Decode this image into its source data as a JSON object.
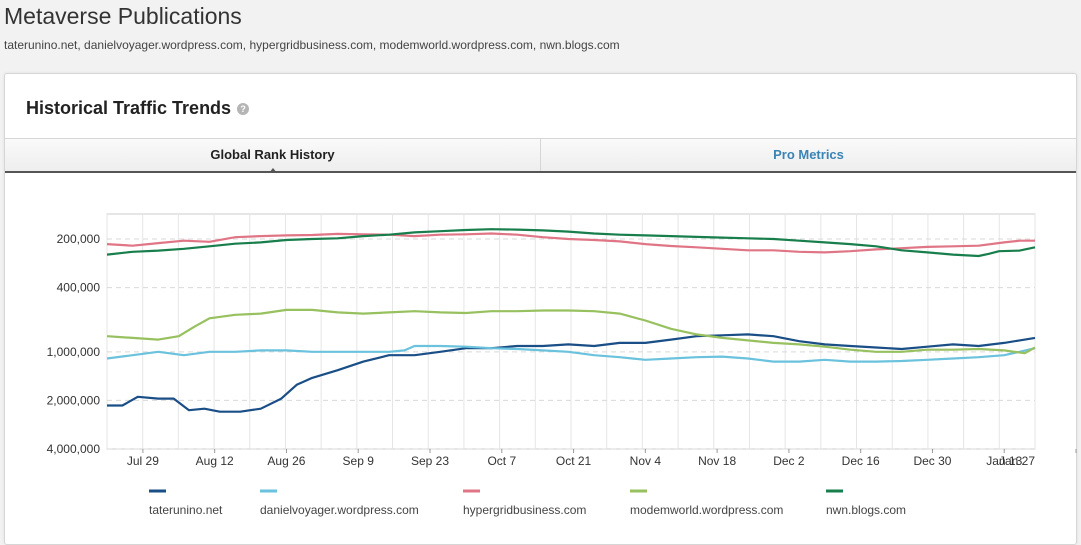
{
  "page": {
    "title": "Metaverse Publications",
    "subtitle": "taterunino.net, danielvoyager.wordpress.com, hypergridbusiness.com, modemworld.wordpress.com, nwn.blogs.com"
  },
  "panel": {
    "title": "Historical Traffic Trends",
    "help_glyph": "?"
  },
  "tabs": [
    {
      "label": "Global Rank History",
      "active": true
    },
    {
      "label": "Pro Metrics",
      "active": false
    }
  ],
  "colors": {
    "taterunino": "#1a4e86",
    "danielvoyager": "#6ac2dd",
    "hypergrid": "#e07585",
    "modemworld": "#97c05e",
    "nwn": "#177e4c"
  },
  "chart_data": {
    "type": "line",
    "x_tick_labels": [
      "Jul 29",
      "Aug 12",
      "Aug 26",
      "Sep 9",
      "Sep 23",
      "Oct 7",
      "Oct 21",
      "Nov 4",
      "Nov 18",
      "Dec 2",
      "Dec 16",
      "Dec 30",
      "Jan 13",
      "Jan 27"
    ],
    "x_range_days": [
      0,
      181
    ],
    "y_tick_labels": [
      "200,000",
      "400,000",
      "1,000,000",
      "2,000,000",
      "4,000,000"
    ],
    "y_tick_values": [
      200000,
      400000,
      1000000,
      2000000,
      4000000
    ],
    "y_scale": "log",
    "y_inverted": true,
    "ylim": [
      140000,
      4000000
    ],
    "grid": true,
    "legend_position": "bottom",
    "series": [
      {
        "name": "taterunino.net",
        "color_key": "taterunino",
        "points": [
          [
            0,
            2150000
          ],
          [
            3,
            2150000
          ],
          [
            6,
            1900000
          ],
          [
            10,
            1950000
          ],
          [
            13,
            1950000
          ],
          [
            16,
            2300000
          ],
          [
            19,
            2250000
          ],
          [
            22,
            2350000
          ],
          [
            26,
            2350000
          ],
          [
            30,
            2250000
          ],
          [
            34,
            1950000
          ],
          [
            37,
            1600000
          ],
          [
            40,
            1450000
          ],
          [
            45,
            1300000
          ],
          [
            50,
            1150000
          ],
          [
            55,
            1050000
          ],
          [
            60,
            1050000
          ],
          [
            65,
            1000000
          ],
          [
            70,
            950000
          ],
          [
            75,
            950000
          ],
          [
            80,
            920000
          ],
          [
            85,
            920000
          ],
          [
            90,
            900000
          ],
          [
            95,
            920000
          ],
          [
            100,
            880000
          ],
          [
            105,
            880000
          ],
          [
            110,
            840000
          ],
          [
            115,
            800000
          ],
          [
            120,
            790000
          ],
          [
            125,
            780000
          ],
          [
            130,
            800000
          ],
          [
            135,
            860000
          ],
          [
            140,
            900000
          ],
          [
            145,
            920000
          ],
          [
            150,
            940000
          ],
          [
            155,
            960000
          ],
          [
            160,
            930000
          ],
          [
            165,
            900000
          ],
          [
            170,
            920000
          ],
          [
            175,
            880000
          ],
          [
            178,
            850000
          ],
          [
            181,
            820000
          ]
        ]
      },
      {
        "name": "danielvoyager.wordpress.com",
        "color_key": "danielvoyager",
        "points": [
          [
            0,
            1100000
          ],
          [
            5,
            1050000
          ],
          [
            10,
            1000000
          ],
          [
            15,
            1050000
          ],
          [
            20,
            1000000
          ],
          [
            25,
            1000000
          ],
          [
            30,
            980000
          ],
          [
            35,
            980000
          ],
          [
            40,
            1000000
          ],
          [
            45,
            1000000
          ],
          [
            50,
            1000000
          ],
          [
            55,
            1000000
          ],
          [
            58,
            980000
          ],
          [
            60,
            920000
          ],
          [
            65,
            920000
          ],
          [
            70,
            930000
          ],
          [
            75,
            950000
          ],
          [
            80,
            960000
          ],
          [
            85,
            980000
          ],
          [
            90,
            1000000
          ],
          [
            95,
            1050000
          ],
          [
            100,
            1080000
          ],
          [
            105,
            1120000
          ],
          [
            110,
            1100000
          ],
          [
            115,
            1080000
          ],
          [
            120,
            1070000
          ],
          [
            125,
            1100000
          ],
          [
            130,
            1150000
          ],
          [
            135,
            1150000
          ],
          [
            140,
            1120000
          ],
          [
            145,
            1150000
          ],
          [
            150,
            1150000
          ],
          [
            155,
            1140000
          ],
          [
            160,
            1120000
          ],
          [
            165,
            1100000
          ],
          [
            170,
            1080000
          ],
          [
            175,
            1050000
          ],
          [
            178,
            1000000
          ],
          [
            181,
            950000
          ]
        ]
      },
      {
        "name": "hypergridbusiness.com",
        "color_key": "hypergrid",
        "points": [
          [
            0,
            215000
          ],
          [
            5,
            220000
          ],
          [
            10,
            212000
          ],
          [
            15,
            205000
          ],
          [
            20,
            208000
          ],
          [
            25,
            195000
          ],
          [
            30,
            192000
          ],
          [
            35,
            190000
          ],
          [
            40,
            189000
          ],
          [
            45,
            186000
          ],
          [
            50,
            187000
          ],
          [
            55,
            188000
          ],
          [
            60,
            192000
          ],
          [
            65,
            188000
          ],
          [
            70,
            187000
          ],
          [
            75,
            185000
          ],
          [
            80,
            188000
          ],
          [
            85,
            195000
          ],
          [
            90,
            200000
          ],
          [
            95,
            203000
          ],
          [
            100,
            207000
          ],
          [
            105,
            215000
          ],
          [
            110,
            221000
          ],
          [
            115,
            225000
          ],
          [
            120,
            230000
          ],
          [
            125,
            235000
          ],
          [
            130,
            235000
          ],
          [
            135,
            240000
          ],
          [
            140,
            242000
          ],
          [
            145,
            238000
          ],
          [
            150,
            232000
          ],
          [
            155,
            228000
          ],
          [
            160,
            224000
          ],
          [
            165,
            222000
          ],
          [
            170,
            220000
          ],
          [
            175,
            210000
          ],
          [
            178,
            205000
          ],
          [
            181,
            205000
          ]
        ]
      },
      {
        "name": "modemworld.wordpress.com",
        "color_key": "modemworld",
        "points": [
          [
            0,
            800000
          ],
          [
            5,
            820000
          ],
          [
            10,
            840000
          ],
          [
            14,
            800000
          ],
          [
            17,
            700000
          ],
          [
            20,
            620000
          ],
          [
            25,
            590000
          ],
          [
            30,
            580000
          ],
          [
            35,
            550000
          ],
          [
            40,
            550000
          ],
          [
            45,
            570000
          ],
          [
            50,
            580000
          ],
          [
            55,
            570000
          ],
          [
            60,
            560000
          ],
          [
            65,
            570000
          ],
          [
            70,
            575000
          ],
          [
            75,
            560000
          ],
          [
            80,
            560000
          ],
          [
            85,
            555000
          ],
          [
            90,
            555000
          ],
          [
            95,
            560000
          ],
          [
            100,
            580000
          ],
          [
            105,
            640000
          ],
          [
            110,
            720000
          ],
          [
            115,
            780000
          ],
          [
            120,
            820000
          ],
          [
            125,
            850000
          ],
          [
            130,
            880000
          ],
          [
            135,
            900000
          ],
          [
            140,
            930000
          ],
          [
            145,
            970000
          ],
          [
            150,
            1000000
          ],
          [
            155,
            1000000
          ],
          [
            160,
            970000
          ],
          [
            165,
            970000
          ],
          [
            170,
            960000
          ],
          [
            175,
            980000
          ],
          [
            177,
            1000000
          ],
          [
            179,
            1020000
          ],
          [
            181,
            940000
          ]
        ]
      },
      {
        "name": "nwn.blogs.com",
        "color_key": "nwn",
        "points": [
          [
            0,
            250000
          ],
          [
            5,
            240000
          ],
          [
            10,
            236000
          ],
          [
            15,
            230000
          ],
          [
            20,
            222000
          ],
          [
            25,
            214000
          ],
          [
            30,
            210000
          ],
          [
            35,
            203000
          ],
          [
            40,
            200000
          ],
          [
            45,
            198000
          ],
          [
            50,
            192000
          ],
          [
            55,
            188000
          ],
          [
            60,
            182000
          ],
          [
            65,
            179000
          ],
          [
            70,
            176000
          ],
          [
            75,
            174000
          ],
          [
            80,
            175000
          ],
          [
            85,
            177000
          ],
          [
            90,
            180000
          ],
          [
            95,
            185000
          ],
          [
            100,
            188000
          ],
          [
            105,
            190000
          ],
          [
            110,
            192000
          ],
          [
            115,
            194000
          ],
          [
            120,
            196000
          ],
          [
            125,
            198000
          ],
          [
            130,
            200000
          ],
          [
            135,
            205000
          ],
          [
            140,
            210000
          ],
          [
            145,
            215000
          ],
          [
            150,
            222000
          ],
          [
            155,
            235000
          ],
          [
            160,
            242000
          ],
          [
            165,
            250000
          ],
          [
            170,
            255000
          ],
          [
            172,
            247000
          ],
          [
            174,
            238000
          ],
          [
            178,
            236000
          ],
          [
            181,
            225000
          ]
        ]
      }
    ]
  }
}
